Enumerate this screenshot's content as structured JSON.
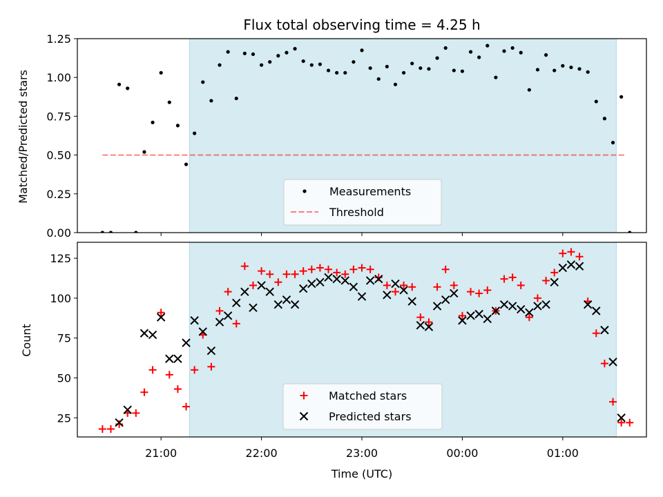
{
  "title": "Flux total observing time = 4.25 h",
  "colors": {
    "shade": "#add8e6",
    "measurement": "#000000",
    "threshold": "#ff0000",
    "matched": "#ff0000",
    "predicted": "#000000"
  },
  "chart_data": [
    {
      "type": "scatter",
      "ylabel": "Matched/Predicted stars",
      "ylim": [
        0,
        1.25
      ],
      "yticks": [
        "0.00",
        "0.25",
        "0.50",
        "0.75",
        "1.00",
        "1.25"
      ],
      "shaded_span": [
        "21:17",
        "01:32"
      ],
      "threshold": 0.5,
      "threshold_x": [
        "20:25",
        "01:37"
      ],
      "legend": {
        "placement": "bottom-center",
        "entries": [
          "Measurements",
          "Threshold"
        ]
      },
      "series": [
        {
          "name": "Measurements",
          "marker": "dot",
          "points": [
            [
              "20:25",
              0.0
            ],
            [
              "20:30",
              0.0
            ],
            [
              "20:35",
              0.955
            ],
            [
              "20:40",
              0.93
            ],
            [
              "20:45",
              0.0
            ],
            [
              "20:50",
              0.52
            ],
            [
              "20:55",
              0.71
            ],
            [
              "21:00",
              1.03
            ],
            [
              "21:05",
              0.84
            ],
            [
              "21:10",
              0.69
            ],
            [
              "21:15",
              0.44
            ],
            [
              "21:20",
              0.64
            ],
            [
              "21:25",
              0.97
            ],
            [
              "21:30",
              0.85
            ],
            [
              "21:35",
              1.08
            ],
            [
              "21:40",
              1.165
            ],
            [
              "21:45",
              0.865
            ],
            [
              "21:50",
              1.155
            ],
            [
              "21:55",
              1.15
            ],
            [
              "22:00",
              1.08
            ],
            [
              "22:05",
              1.1
            ],
            [
              "22:10",
              1.14
            ],
            [
              "22:15",
              1.16
            ],
            [
              "22:20",
              1.185
            ],
            [
              "22:25",
              1.105
            ],
            [
              "22:30",
              1.08
            ],
            [
              "22:35",
              1.085
            ],
            [
              "22:40",
              1.045
            ],
            [
              "22:45",
              1.03
            ],
            [
              "22:50",
              1.03
            ],
            [
              "22:55",
              1.1
            ],
            [
              "23:00",
              1.175
            ],
            [
              "23:05",
              1.06
            ],
            [
              "23:10",
              0.99
            ],
            [
              "23:15",
              1.07
            ],
            [
              "23:20",
              0.955
            ],
            [
              "23:25",
              1.03
            ],
            [
              "23:30",
              1.09
            ],
            [
              "23:35",
              1.06
            ],
            [
              "23:40",
              1.055
            ],
            [
              "23:45",
              1.125
            ],
            [
              "23:50",
              1.19
            ],
            [
              "23:55",
              1.045
            ],
            [
              "00:00",
              1.04
            ],
            [
              "00:05",
              1.165
            ],
            [
              "00:10",
              1.13
            ],
            [
              "00:15",
              1.205
            ],
            [
              "00:20",
              1.0
            ],
            [
              "00:25",
              1.17
            ],
            [
              "00:30",
              1.19
            ],
            [
              "00:35",
              1.16
            ],
            [
              "00:40",
              0.92
            ],
            [
              "00:45",
              1.05
            ],
            [
              "00:50",
              1.145
            ],
            [
              "00:55",
              1.045
            ],
            [
              "01:00",
              1.075
            ],
            [
              "01:05",
              1.065
            ],
            [
              "01:10",
              1.055
            ],
            [
              "01:15",
              1.035
            ],
            [
              "01:20",
              0.845
            ],
            [
              "01:25",
              0.735
            ],
            [
              "01:30",
              0.58
            ],
            [
              "01:35",
              0.875
            ],
            [
              "01:40",
              0.0
            ]
          ]
        }
      ]
    },
    {
      "type": "scatter",
      "xlabel": "Time (UTC)",
      "ylabel": "Count",
      "xlim": [
        "20:10",
        "01:50"
      ],
      "xticks": [
        "21:00",
        "22:00",
        "23:00",
        "00:00",
        "01:00"
      ],
      "ylim": [
        13,
        135
      ],
      "yticks": [
        25,
        50,
        75,
        100,
        125
      ],
      "shaded_span": [
        "21:17",
        "01:32"
      ],
      "legend": {
        "placement": "bottom-center",
        "entries": [
          "Matched stars",
          "Predicted stars"
        ]
      },
      "series": [
        {
          "name": "Matched stars",
          "marker": "plus",
          "points": [
            [
              "20:25",
              18
            ],
            [
              "20:30",
              18
            ],
            [
              "20:35",
              21
            ],
            [
              "20:40",
              28
            ],
            [
              "20:45",
              28
            ],
            [
              "20:50",
              41
            ],
            [
              "20:55",
              55
            ],
            [
              "21:00",
              91
            ],
            [
              "21:05",
              52
            ],
            [
              "21:10",
              43
            ],
            [
              "21:15",
              32
            ],
            [
              "21:20",
              55
            ],
            [
              "21:25",
              77
            ],
            [
              "21:30",
              57
            ],
            [
              "21:35",
              92
            ],
            [
              "21:40",
              104
            ],
            [
              "21:45",
              84
            ],
            [
              "21:50",
              120
            ],
            [
              "21:55",
              108
            ],
            [
              "22:00",
              117
            ],
            [
              "22:05",
              115
            ],
            [
              "22:10",
              110
            ],
            [
              "22:15",
              115
            ],
            [
              "22:20",
              115
            ],
            [
              "22:25",
              117
            ],
            [
              "22:30",
              118
            ],
            [
              "22:35",
              119
            ],
            [
              "22:40",
              118
            ],
            [
              "22:45",
              116
            ],
            [
              "22:50",
              115
            ],
            [
              "22:55",
              118
            ],
            [
              "23:00",
              119
            ],
            [
              "23:05",
              118
            ],
            [
              "23:10",
              113
            ],
            [
              "23:15",
              108
            ],
            [
              "23:20",
              104
            ],
            [
              "23:25",
              108
            ],
            [
              "23:30",
              107
            ],
            [
              "23:35",
              88
            ],
            [
              "23:40",
              85
            ],
            [
              "23:45",
              107
            ],
            [
              "23:50",
              118
            ],
            [
              "23:55",
              108
            ],
            [
              "00:00",
              89
            ],
            [
              "00:05",
              104
            ],
            [
              "00:10",
              103
            ],
            [
              "00:15",
              105
            ],
            [
              "00:20",
              92
            ],
            [
              "00:25",
              112
            ],
            [
              "00:30",
              113
            ],
            [
              "00:35",
              108
            ],
            [
              "00:40",
              88
            ],
            [
              "00:45",
              100
            ],
            [
              "00:50",
              111
            ],
            [
              "00:55",
              116
            ],
            [
              "01:00",
              128
            ],
            [
              "01:05",
              129
            ],
            [
              "01:10",
              126
            ],
            [
              "01:15",
              98
            ],
            [
              "01:20",
              78
            ],
            [
              "01:25",
              59
            ],
            [
              "01:30",
              35
            ],
            [
              "01:35",
              22
            ],
            [
              "01:40",
              22
            ]
          ]
        },
        {
          "name": "Predicted stars",
          "marker": "x",
          "points": [
            [
              "20:35",
              22
            ],
            [
              "20:40",
              30
            ],
            [
              "20:50",
              78
            ],
            [
              "20:55",
              77
            ],
            [
              "21:00",
              88
            ],
            [
              "21:05",
              62
            ],
            [
              "21:10",
              62
            ],
            [
              "21:15",
              72
            ],
            [
              "21:20",
              86
            ],
            [
              "21:25",
              79
            ],
            [
              "21:30",
              67
            ],
            [
              "21:35",
              85
            ],
            [
              "21:40",
              89
            ],
            [
              "21:45",
              97
            ],
            [
              "21:50",
              104
            ],
            [
              "21:55",
              94
            ],
            [
              "22:00",
              108
            ],
            [
              "22:05",
              104
            ],
            [
              "22:10",
              96
            ],
            [
              "22:15",
              99
            ],
            [
              "22:20",
              96
            ],
            [
              "22:25",
              106
            ],
            [
              "22:30",
              109
            ],
            [
              "22:35",
              110
            ],
            [
              "22:40",
              113
            ],
            [
              "22:45",
              112
            ],
            [
              "22:50",
              111
            ],
            [
              "22:55",
              107
            ],
            [
              "23:00",
              101
            ],
            [
              "23:05",
              111
            ],
            [
              "23:10",
              112
            ],
            [
              "23:15",
              102
            ],
            [
              "23:20",
              109
            ],
            [
              "23:25",
              105
            ],
            [
              "23:30",
              98
            ],
            [
              "23:35",
              83
            ],
            [
              "23:40",
              82
            ],
            [
              "23:45",
              95
            ],
            [
              "23:50",
              99
            ],
            [
              "23:55",
              103
            ],
            [
              "00:00",
              86
            ],
            [
              "00:05",
              89
            ],
            [
              "00:10",
              90
            ],
            [
              "00:15",
              87
            ],
            [
              "00:20",
              92
            ],
            [
              "00:25",
              96
            ],
            [
              "00:30",
              95
            ],
            [
              "00:35",
              93
            ],
            [
              "00:40",
              91
            ],
            [
              "00:45",
              95
            ],
            [
              "00:50",
              96
            ],
            [
              "00:55",
              110
            ],
            [
              "01:00",
              119
            ],
            [
              "01:05",
              121
            ],
            [
              "01:10",
              120
            ],
            [
              "01:15",
              96
            ],
            [
              "01:20",
              92
            ],
            [
              "01:25",
              80
            ],
            [
              "01:30",
              60
            ],
            [
              "01:35",
              25
            ]
          ]
        }
      ]
    }
  ]
}
